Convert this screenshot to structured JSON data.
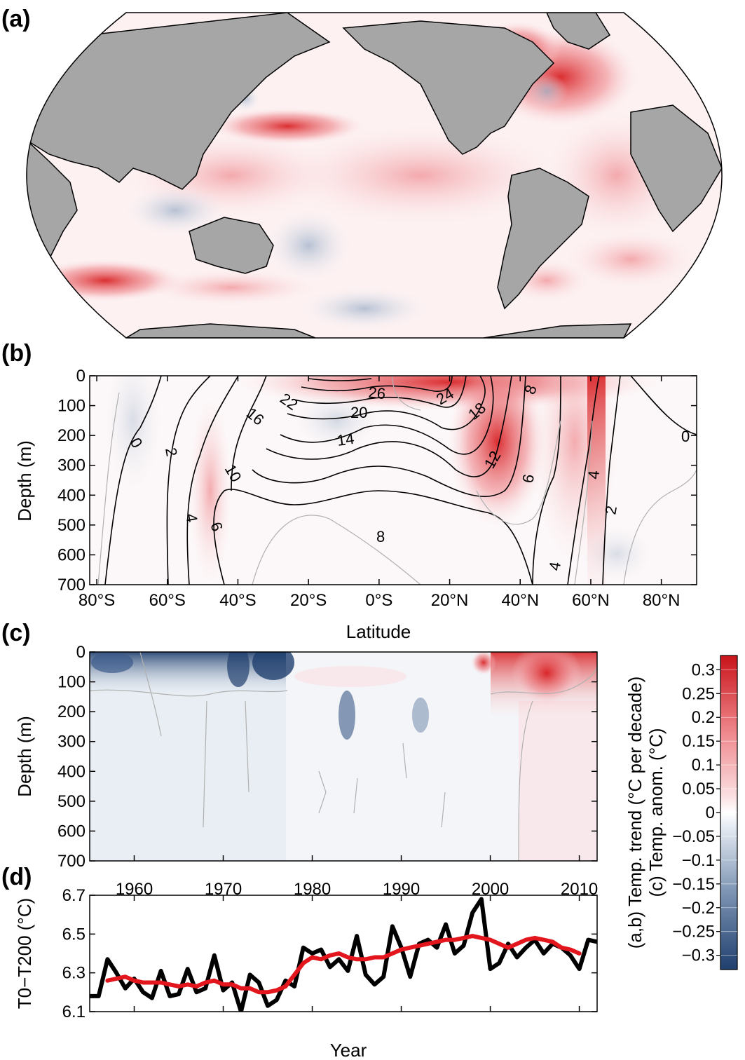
{
  "colors": {
    "land": "#a6a6a6",
    "warm_strong": "#d7191c",
    "warm_mid": "#ef8a8f",
    "warm_light": "#fbe0e2",
    "neutral": "#ffffff",
    "cool_light": "#e8edf3",
    "cool_mid": "#9fb1c8",
    "cool_strong": "#1f3f6e",
    "contour_gray": "#b0b0b0",
    "series_black": "#000000",
    "series_red": "#e3161d"
  },
  "chart_data": [
    {
      "panel": "(a)",
      "type": "heatmap",
      "description_visible": "global map of temperature trend"
    },
    {
      "panel": "(b)",
      "type": "heatmap",
      "xlabel": "Latitude",
      "ylabel": "Depth (m)",
      "x_ticks": [
        "80°S",
        "60°S",
        "40°S",
        "20°S",
        "0°S",
        "20°N",
        "40°N",
        "60°N",
        "80°N"
      ],
      "x_tick_values": [
        -80,
        -60,
        -40,
        -20,
        0,
        20,
        40,
        60,
        80
      ],
      "xlim": [
        -82,
        90
      ],
      "y_ticks": [
        "0",
        "100",
        "200",
        "300",
        "400",
        "500",
        "600",
        "700"
      ],
      "ylim": [
        0,
        700
      ],
      "contour_labels": [
        "26",
        "24",
        "22",
        "20",
        "18",
        "16",
        "14",
        "12",
        "10",
        "8",
        "8",
        "6",
        "6",
        "4",
        "4",
        "4",
        "2",
        "2",
        "0",
        "0"
      ]
    },
    {
      "panel": "(c)",
      "type": "heatmap",
      "ylabel": "Depth (m)",
      "y_ticks": [
        "0",
        "100",
        "200",
        "300",
        "400",
        "500",
        "600",
        "700"
      ],
      "ylim": [
        0,
        700
      ],
      "x_ticks": [
        "1960",
        "1970",
        "1980",
        "1990",
        "2000",
        "2010"
      ],
      "x_tick_values": [
        1960,
        1970,
        1980,
        1990,
        2000,
        2010
      ],
      "xlim": [
        1955,
        2012
      ]
    },
    {
      "panel": "(d)",
      "type": "line",
      "xlabel": "Year",
      "ylabel": "T0−T200 (°C)",
      "y_ticks": [
        "6.1",
        "6.3",
        "6.5",
        "6.7"
      ],
      "ylim": [
        6.1,
        6.7
      ],
      "xlim": [
        1955,
        2012
      ],
      "series": [
        {
          "color": "#000000",
          "x": [
            1955,
            1956,
            1957,
            1958,
            1959,
            1960,
            1961,
            1962,
            1963,
            1964,
            1965,
            1966,
            1967,
            1968,
            1969,
            1970,
            1971,
            1972,
            1973,
            1974,
            1975,
            1976,
            1977,
            1978,
            1979,
            1980,
            1981,
            1982,
            1983,
            1984,
            1985,
            1986,
            1987,
            1988,
            1989,
            1990,
            1991,
            1992,
            1993,
            1994,
            1995,
            1996,
            1997,
            1998,
            1999,
            2000,
            2001,
            2002,
            2003,
            2004,
            2005,
            2006,
            2007,
            2008,
            2009,
            2010,
            2011,
            2012
          ],
          "values": [
            6.18,
            6.18,
            6.37,
            6.3,
            6.22,
            6.27,
            6.2,
            6.17,
            6.31,
            6.18,
            6.19,
            6.32,
            6.2,
            6.22,
            6.39,
            6.21,
            6.25,
            6.1,
            6.29,
            6.25,
            6.13,
            6.16,
            6.26,
            6.23,
            6.43,
            6.4,
            6.42,
            6.33,
            6.37,
            6.31,
            6.49,
            6.29,
            6.24,
            6.28,
            6.54,
            6.43,
            6.28,
            6.45,
            6.47,
            6.43,
            6.55,
            6.4,
            6.44,
            6.61,
            6.68,
            6.32,
            6.35,
            6.45,
            6.38,
            6.43,
            6.47,
            6.4,
            6.45,
            6.43,
            6.39,
            6.32,
            6.47,
            6.46
          ]
        },
        {
          "color": "#e3161d",
          "x": [
            1957,
            1958,
            1959,
            1960,
            1961,
            1962,
            1963,
            1964,
            1965,
            1966,
            1967,
            1968,
            1969,
            1970,
            1971,
            1972,
            1973,
            1974,
            1975,
            1976,
            1977,
            1978,
            1979,
            1980,
            1981,
            1982,
            1983,
            1984,
            1985,
            1986,
            1987,
            1988,
            1989,
            1990,
            1991,
            1992,
            1993,
            1994,
            1995,
            1996,
            1997,
            1998,
            1999,
            2000,
            2001,
            2002,
            2003,
            2004,
            2005,
            2006,
            2007,
            2008,
            2009,
            2010
          ],
          "values": [
            6.26,
            6.27,
            6.28,
            6.26,
            6.25,
            6.25,
            6.25,
            6.24,
            6.23,
            6.24,
            6.23,
            6.25,
            6.26,
            6.24,
            6.24,
            6.22,
            6.22,
            6.2,
            6.2,
            6.21,
            6.23,
            6.29,
            6.35,
            6.38,
            6.37,
            6.39,
            6.4,
            6.38,
            6.37,
            6.37,
            6.38,
            6.38,
            6.4,
            6.42,
            6.43,
            6.44,
            6.45,
            6.46,
            6.47,
            6.47,
            6.48,
            6.49,
            6.48,
            6.47,
            6.45,
            6.43,
            6.45,
            6.47,
            6.48,
            6.47,
            6.46,
            6.43,
            6.42,
            6.4
          ]
        }
      ]
    }
  ],
  "panel_labels": [
    "(a)",
    "(b)",
    "(c)",
    "(d)"
  ],
  "colorbar": {
    "ticks": [
      "0.3",
      "0.25",
      "0.2",
      "0.15",
      "0.1",
      "0.05",
      "0",
      "−0.05",
      "−0.1",
      "−0.15",
      "−0.2",
      "−0.25",
      "−0.3"
    ],
    "tick_values": [
      0.3,
      0.25,
      0.2,
      0.15,
      0.1,
      0.05,
      0,
      -0.05,
      -0.1,
      -0.15,
      -0.2,
      -0.25,
      -0.3
    ],
    "range": [
      -0.33,
      0.33
    ],
    "label_line1": "(a,b) Temp. trend (°C per decade)",
    "label_line2": "(c) Temp. anom. (°C)"
  }
}
